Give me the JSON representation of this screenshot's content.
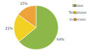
{
  "chart_data": {
    "type": "pie",
    "categories": [
      "Online",
      "Telephone",
      "In-person"
    ],
    "values": [
      64,
      21,
      15
    ],
    "value_labels": [
      "64%",
      "21%",
      "15%"
    ],
    "colors": [
      "#8db849",
      "#f2d024",
      "#eea23a"
    ],
    "data_labels": true,
    "legend": "right"
  }
}
